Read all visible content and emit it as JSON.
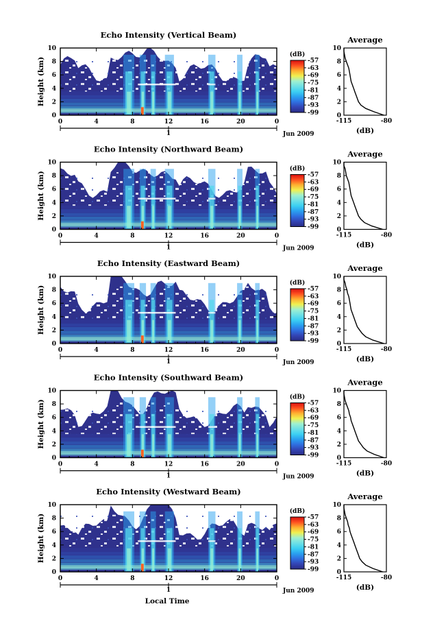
{
  "figure": {
    "xlabel": "Local Time",
    "date_label": "Jun 2009",
    "day_marker": "1"
  },
  "colors": {
    "background": "#2f318c",
    "colormap": [
      "#2a2c86",
      "#3344b4",
      "#2f6fe0",
      "#2aa1f0",
      "#3cd0f2",
      "#6ee0e6",
      "#9ff0d0",
      "#f0f050",
      "#ffb030",
      "#ff5020",
      "#d81010"
    ]
  },
  "chart_data": [
    {
      "type": "heatmap",
      "title": "Echo Intensity (Vertical Beam)",
      "xlabel": "",
      "ylabel": "Height (km)",
      "xlim": [
        0,
        24
      ],
      "ylim": [
        0,
        10
      ],
      "xticks": [
        "0",
        "4",
        "8",
        "12",
        "16",
        "20",
        "0"
      ],
      "yticks": [
        "0",
        "2",
        "4",
        "6",
        "8",
        "10"
      ],
      "cloud_band_hours": [
        [
          7.0,
          8.2
        ],
        [
          8.8,
          9.5
        ],
        [
          10.0,
          10.6
        ],
        [
          11.6,
          12.6
        ],
        [
          16.4,
          17.2
        ],
        [
          19.6,
          20.2
        ],
        [
          21.6,
          22.1
        ]
      ],
      "bright_layer_km": 4.6,
      "colorbar": {
        "label": "(dB)",
        "ticks": [
          "-57",
          "-63",
          "-69",
          "-75",
          "-81",
          "-87",
          "-93",
          "-99"
        ],
        "range": [
          -99,
          -57
        ]
      },
      "average_profile": {
        "title": "Average",
        "xlabel": "(dB)",
        "xlim": [
          -115,
          -80
        ],
        "xticks": [
          "-115",
          "-80"
        ],
        "height_km": [
          0,
          0.5,
          1,
          1.5,
          2,
          2.5,
          3,
          3.5,
          4,
          4.5,
          5,
          5.5,
          6,
          6.5,
          7,
          7.5,
          8,
          8.5,
          9,
          9.5,
          10
        ],
        "db": [
          -82,
          -90,
          -97,
          -101,
          -103,
          -104,
          -105,
          -106,
          -107,
          -108,
          -109,
          -109.5,
          -110,
          -110.5,
          -111,
          -112,
          -113,
          -114,
          -114.5,
          -115,
          -115
        ]
      }
    },
    {
      "type": "heatmap",
      "title": "Echo Intensity (Northward Beam)",
      "xlabel": "",
      "ylabel": "Height (km)",
      "xlim": [
        0,
        24
      ],
      "ylim": [
        0,
        10
      ],
      "xticks": [
        "0",
        "4",
        "8",
        "12",
        "16",
        "20",
        "0"
      ],
      "yticks": [
        "0",
        "2",
        "4",
        "6",
        "8",
        "10"
      ],
      "cloud_band_hours": [
        [
          7.0,
          8.2
        ],
        [
          8.8,
          9.5
        ],
        [
          10.0,
          10.6
        ],
        [
          11.6,
          12.6
        ],
        [
          16.4,
          17.2
        ],
        [
          19.6,
          20.2
        ],
        [
          21.6,
          22.1
        ]
      ],
      "bright_layer_km": 4.6,
      "colorbar": {
        "label": "(dB)",
        "ticks": [
          "-57",
          "-63",
          "-69",
          "-75",
          "-81",
          "-87",
          "-93",
          "-99"
        ],
        "range": [
          -99,
          -57
        ]
      },
      "average_profile": {
        "title": "Average",
        "xlabel": "(dB)",
        "xlim": [
          -115,
          -80
        ],
        "xticks": [
          "-115",
          "-80"
        ],
        "height_km": [
          0,
          0.5,
          1,
          1.5,
          2,
          2.5,
          3,
          3.5,
          4,
          4.5,
          5,
          5.5,
          6,
          6.5,
          7,
          7.5,
          8,
          8.5,
          9,
          9.5,
          10
        ],
        "db": [
          -83,
          -92,
          -98,
          -101,
          -103,
          -104,
          -105,
          -106,
          -107,
          -108,
          -109,
          -109.5,
          -110,
          -110.5,
          -111,
          -112,
          -113,
          -113.5,
          -114,
          -115,
          -115
        ]
      }
    },
    {
      "type": "heatmap",
      "title": "Echo Intensity (Eastward Beam)",
      "xlabel": "",
      "ylabel": "Height (km)",
      "xlim": [
        0,
        24
      ],
      "ylim": [
        0,
        10
      ],
      "xticks": [
        "0",
        "4",
        "8",
        "12",
        "16",
        "20",
        "0"
      ],
      "yticks": [
        "0",
        "2",
        "4",
        "6",
        "8",
        "10"
      ],
      "cloud_band_hours": [
        [
          7.0,
          8.2
        ],
        [
          8.8,
          9.5
        ],
        [
          10.0,
          10.6
        ],
        [
          11.6,
          12.6
        ],
        [
          16.4,
          17.2
        ],
        [
          19.6,
          20.2
        ],
        [
          21.6,
          22.1
        ]
      ],
      "bright_layer_km": 4.6,
      "colorbar": {
        "label": "(dB)",
        "ticks": [
          "-57",
          "-63",
          "-69",
          "-75",
          "-81",
          "-87",
          "-93",
          "-99"
        ],
        "range": [
          -99,
          -57
        ]
      },
      "average_profile": {
        "title": "Average",
        "xlabel": "(dB)",
        "xlim": [
          -115,
          -80
        ],
        "xticks": [
          "-115",
          "-80"
        ],
        "height_km": [
          0,
          0.5,
          1,
          1.5,
          2,
          2.5,
          3,
          3.5,
          4,
          4.5,
          5,
          5.5,
          6,
          6.5,
          7,
          7.5,
          8,
          8.5,
          9,
          9.5,
          10
        ],
        "db": [
          -82,
          -91,
          -97,
          -100,
          -102,
          -104,
          -105,
          -106,
          -107,
          -108,
          -109,
          -109.5,
          -110,
          -110.5,
          -111,
          -112,
          -112.5,
          -113.5,
          -114,
          -115,
          -115
        ]
      }
    },
    {
      "type": "heatmap",
      "title": "Echo Intensity (Southward Beam)",
      "xlabel": "",
      "ylabel": "Height (km)",
      "xlim": [
        0,
        24
      ],
      "ylim": [
        0,
        10
      ],
      "xticks": [
        "0",
        "4",
        "8",
        "12",
        "16",
        "20",
        "0"
      ],
      "yticks": [
        "0",
        "2",
        "4",
        "6",
        "8",
        "10"
      ],
      "cloud_band_hours": [
        [
          7.0,
          8.2
        ],
        [
          8.8,
          9.5
        ],
        [
          10.0,
          10.6
        ],
        [
          11.6,
          12.6
        ],
        [
          16.4,
          17.2
        ],
        [
          19.6,
          20.2
        ],
        [
          21.6,
          22.1
        ]
      ],
      "bright_layer_km": 4.6,
      "colorbar": {
        "label": "(dB)",
        "ticks": [
          "-57",
          "-63",
          "-69",
          "-75",
          "-81",
          "-87",
          "-93",
          "-99"
        ],
        "range": [
          -99,
          -57
        ]
      },
      "average_profile": {
        "title": "Average",
        "xlabel": "(dB)",
        "xlim": [
          -115,
          -80
        ],
        "xticks": [
          "-115",
          "-80"
        ],
        "height_km": [
          0,
          0.5,
          1,
          1.5,
          2,
          2.5,
          3,
          3.5,
          4,
          4.5,
          5,
          5.5,
          6,
          6.5,
          7,
          7.5,
          8,
          8.5,
          9,
          9.5,
          10
        ],
        "db": [
          -82,
          -90,
          -96,
          -99,
          -101,
          -103,
          -104,
          -105,
          -106,
          -107,
          -108,
          -109,
          -109.5,
          -110.5,
          -111,
          -112,
          -113,
          -114,
          -114.5,
          -115,
          -115
        ]
      }
    },
    {
      "type": "heatmap",
      "title": "Echo Intensity (Westward Beam)",
      "xlabel": "",
      "ylabel": "Height (km)",
      "xlim": [
        0,
        24
      ],
      "ylim": [
        0,
        10
      ],
      "xticks": [
        "0",
        "4",
        "8",
        "12",
        "16",
        "20",
        "0"
      ],
      "yticks": [
        "0",
        "2",
        "4",
        "6",
        "8",
        "10"
      ],
      "cloud_band_hours": [
        [
          7.0,
          8.2
        ],
        [
          8.8,
          9.5
        ],
        [
          10.0,
          10.6
        ],
        [
          11.6,
          12.6
        ],
        [
          16.4,
          17.2
        ],
        [
          19.6,
          20.2
        ],
        [
          21.6,
          22.1
        ]
      ],
      "bright_layer_km": 4.6,
      "colorbar": {
        "label": "(dB)",
        "ticks": [
          "-57",
          "-63",
          "-69",
          "-75",
          "-81",
          "-87",
          "-93",
          "-99"
        ],
        "range": [
          -99,
          -57
        ]
      },
      "average_profile": {
        "title": "Average",
        "xlabel": "(dB)",
        "xlim": [
          -115,
          -80
        ],
        "xticks": [
          "-115",
          "-80"
        ],
        "height_km": [
          0,
          0.5,
          1,
          1.5,
          2,
          2.5,
          3,
          3.5,
          4,
          4.5,
          5,
          5.5,
          6,
          6.5,
          7,
          7.5,
          8,
          8.5,
          9,
          9.5,
          10
        ],
        "db": [
          -83,
          -91,
          -97,
          -100,
          -102,
          -103,
          -104,
          -105,
          -106,
          -107,
          -108,
          -109,
          -110,
          -110.5,
          -111.5,
          -112,
          -113,
          -114,
          -114.5,
          -115,
          -115
        ]
      }
    }
  ]
}
